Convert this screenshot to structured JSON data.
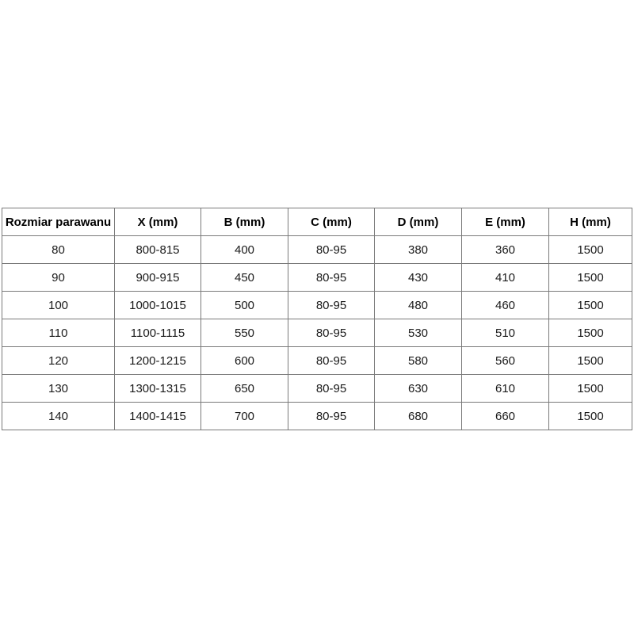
{
  "chart_data": {
    "type": "table",
    "columns": [
      "Rozmiar parawanu",
      "X (mm)",
      "B (mm)",
      "C (mm)",
      "D (mm)",
      "E (mm)",
      "H (mm)"
    ],
    "rows": [
      [
        "80",
        "800-815",
        "400",
        "80-95",
        "380",
        "360",
        "1500"
      ],
      [
        "90",
        "900-915",
        "450",
        "80-95",
        "430",
        "410",
        "1500"
      ],
      [
        "100",
        "1000-1015",
        "500",
        "80-95",
        "480",
        "460",
        "1500"
      ],
      [
        "110",
        "1100-1115",
        "550",
        "80-95",
        "530",
        "510",
        "1500"
      ],
      [
        "120",
        "1200-1215",
        "600",
        "80-95",
        "580",
        "560",
        "1500"
      ],
      [
        "130",
        "1300-1315",
        "650",
        "80-95",
        "630",
        "610",
        "1500"
      ],
      [
        "140",
        "1400-1415",
        "700",
        "80-95",
        "680",
        "660",
        "1500"
      ]
    ],
    "layout": {
      "grid": true,
      "header_bold": true
    }
  },
  "colors": {
    "background": "#ffffff",
    "border": "#7a7a7a",
    "header_text": "#000000",
    "cell_text": "#1a1a1a"
  }
}
